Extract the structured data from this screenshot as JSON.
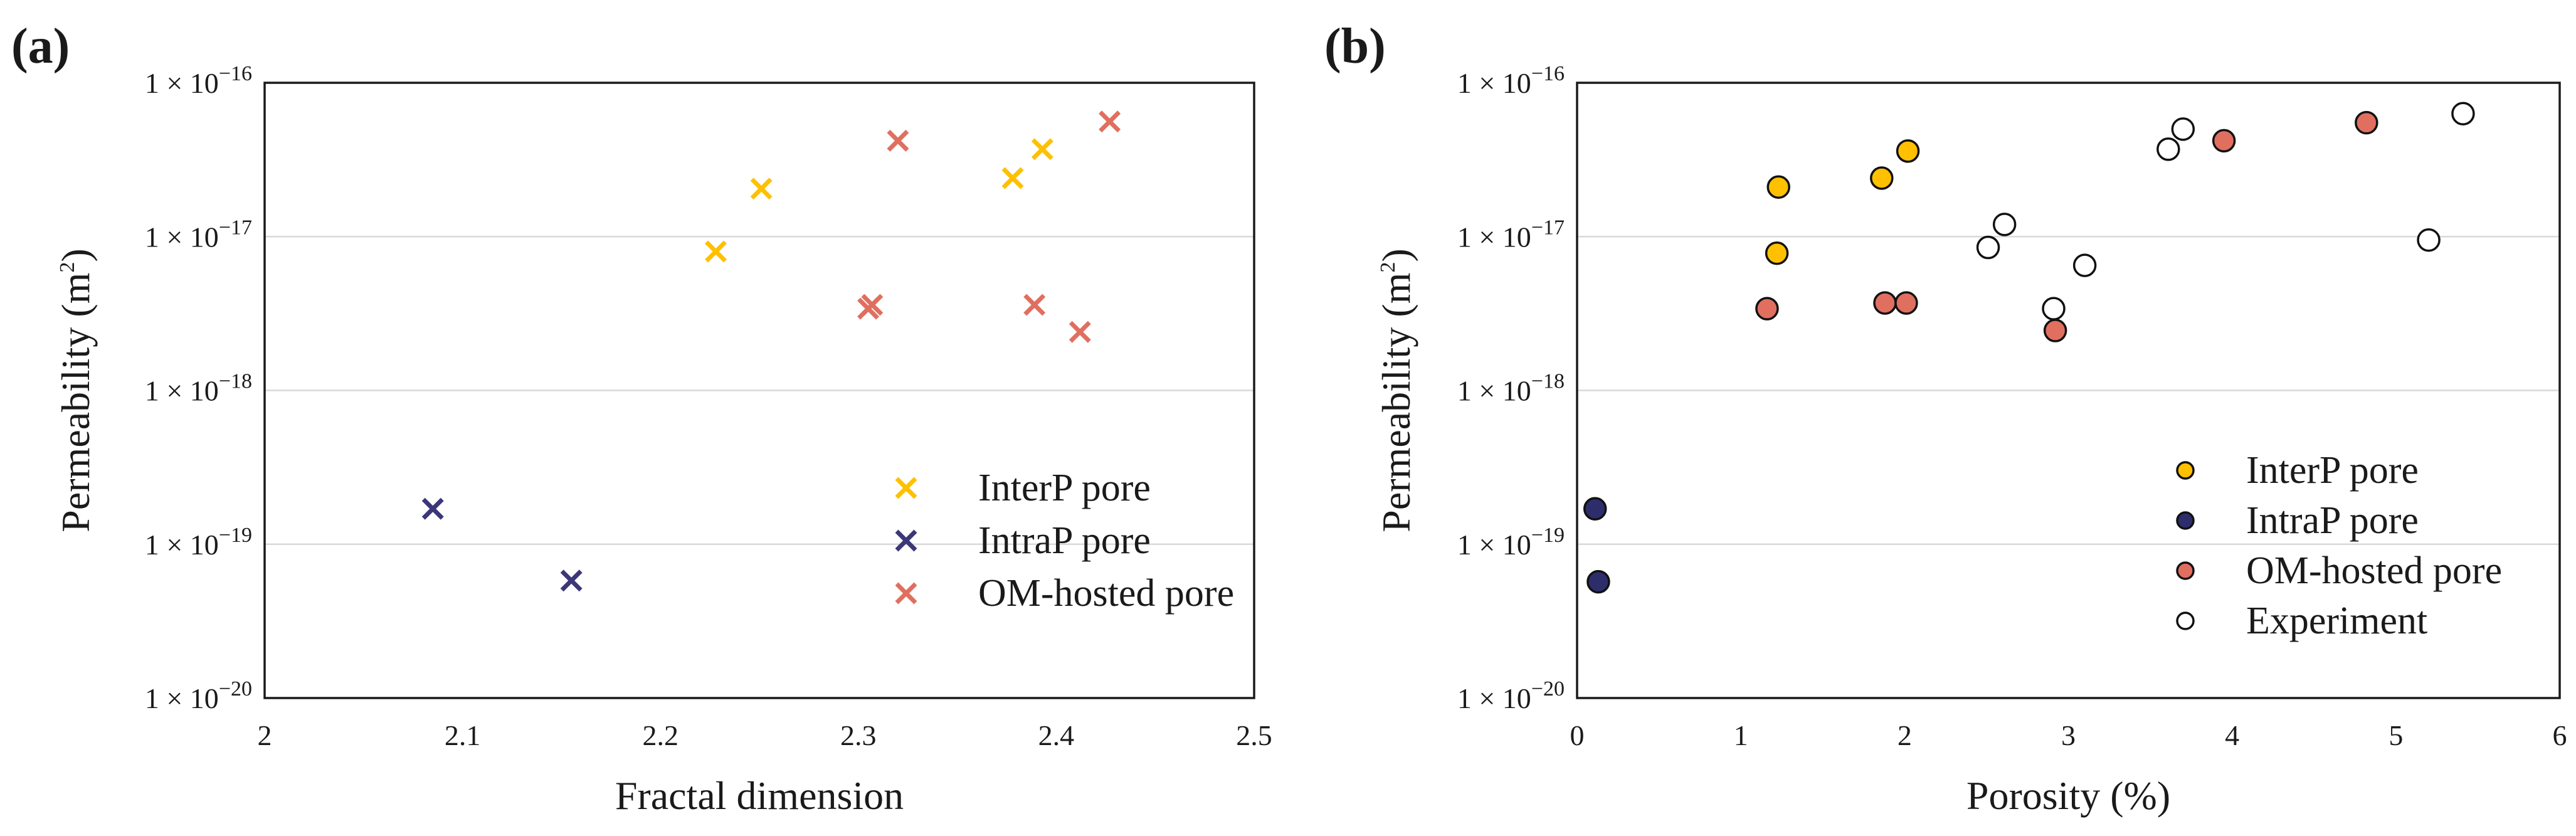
{
  "chart_data": [
    {
      "panel": "(a)",
      "type": "scatter",
      "marker": "cross",
      "xlabel": "Fractal dimension",
      "ylabel": "Permeability (m2)",
      "ylabel_main": "Permeability (m",
      "ylabel_sup": "2",
      "ylabel_end": ")",
      "yscale": "log",
      "xlim": [
        2.0,
        2.5
      ],
      "ylim_exp": [
        -20,
        -16
      ],
      "xticks": [
        "2",
        "2.1",
        "2.2",
        "2.3",
        "2.4",
        "2.5"
      ],
      "yticks": [
        {
          "base": "1 × 10",
          "exp": "−16"
        },
        {
          "base": "1 × 10",
          "exp": "−17"
        },
        {
          "base": "1 × 10",
          "exp": "−18"
        },
        {
          "base": "1 × 10",
          "exp": "−19"
        },
        {
          "base": "1 × 10",
          "exp": "−20"
        }
      ],
      "legend_position": "lower-right",
      "series": [
        {
          "name": "InterP pore",
          "color": "#FFC000",
          "points": [
            [
              2.228,
              8e-18
            ],
            [
              2.251,
              2.05e-17
            ],
            [
              2.378,
              2.4e-17
            ],
            [
              2.393,
              3.7e-17
            ]
          ]
        },
        {
          "name": "IntraP pore",
          "color": "#3B3778",
          "points": [
            [
              2.085,
              1.7e-19
            ],
            [
              2.155,
              5.8e-20
            ]
          ]
        },
        {
          "name": "OM-hosted pore",
          "color": "#E06F60",
          "points": [
            [
              2.32,
              4.2e-17
            ],
            [
              2.427,
              5.6e-17
            ],
            [
              2.307,
              3.6e-18
            ],
            [
              2.305,
              3.4e-18
            ],
            [
              2.389,
              3.6e-18
            ],
            [
              2.412,
              2.4e-18
            ]
          ]
        }
      ]
    },
    {
      "panel": "(b)",
      "type": "scatter",
      "marker": "circle",
      "xlabel": "Porosity (%)",
      "ylabel": "Permeability (m2)",
      "ylabel_main": "Permeability (m",
      "ylabel_sup": "2",
      "ylabel_end": ")",
      "yscale": "log",
      "xlim": [
        0,
        6
      ],
      "ylim_exp": [
        -20,
        -16
      ],
      "xticks": [
        "0",
        "1",
        "2",
        "3",
        "4",
        "5",
        "6"
      ],
      "yticks": [
        {
          "base": "1 × 10",
          "exp": "−16"
        },
        {
          "base": "1 × 10",
          "exp": "−17"
        },
        {
          "base": "1 × 10",
          "exp": "−18"
        },
        {
          "base": "1 × 10",
          "exp": "−19"
        },
        {
          "base": "1 × 10",
          "exp": "−20"
        }
      ],
      "legend_position": "lower-right",
      "series": [
        {
          "name": "InterP pore",
          "color": "#FFC000",
          "points": [
            [
              1.22,
              7.8e-18
            ],
            [
              1.23,
              2.1e-17
            ],
            [
              1.86,
              2.4e-17
            ],
            [
              2.02,
              3.6e-17
            ]
          ]
        },
        {
          "name": "IntraP pore",
          "color": "#2E2D6B",
          "points": [
            [
              0.11,
              1.7e-19
            ],
            [
              0.13,
              5.7e-20
            ]
          ]
        },
        {
          "name": "OM-hosted pore",
          "color": "#E06F60",
          "points": [
            [
              1.16,
              3.4e-18
            ],
            [
              1.88,
              3.7e-18
            ],
            [
              2.01,
              3.7e-18
            ],
            [
              2.92,
              2.45e-18
            ],
            [
              3.95,
              4.2e-17
            ],
            [
              4.82,
              5.5e-17
            ]
          ]
        },
        {
          "name": "Experiment",
          "color": "#FFFFFF",
          "points": [
            [
              2.51,
              8.5e-18
            ],
            [
              2.61,
              1.2e-17
            ],
            [
              2.91,
              3.4e-18
            ],
            [
              3.1,
              6.5e-18
            ],
            [
              3.61,
              3.7e-17
            ],
            [
              3.7,
              5e-17
            ],
            [
              5.2,
              9.5e-18
            ],
            [
              5.41,
              6.3e-17
            ]
          ]
        }
      ]
    }
  ]
}
